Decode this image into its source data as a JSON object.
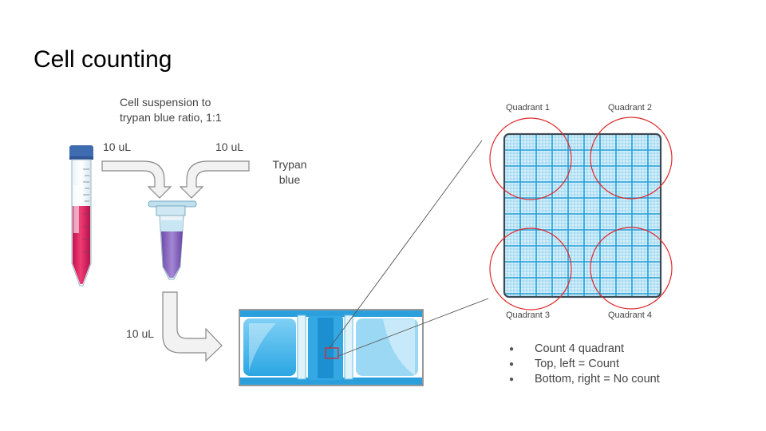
{
  "slide": {
    "title": "Cell counting",
    "ratio_line1": "Cell suspension to",
    "ratio_line2": "trypan blue ratio, 1:1",
    "vol_left": "10 uL",
    "vol_right": "10 uL",
    "vol_bottom": "10 uL",
    "trypan_line1": "Trypan",
    "trypan_line2": "blue",
    "quadrants": [
      "Quadrant 1",
      "Quadrant 2",
      "Quadrant 3",
      "Quadrant 4"
    ],
    "bullets": [
      "Count 4 quadrant",
      "Top, left = Count",
      "Bottom, right = No count"
    ]
  },
  "colors": {
    "arrow_fill": "#f2f2f2",
    "arrow_stroke": "#888888",
    "grid_line": "#1a9ad6",
    "grid_bg": "#d6f0fb",
    "circle": "#e0282a",
    "tube_liquid": "#d81b5a",
    "tube_cap": "#3f6cb0",
    "dye": "#8a64c0"
  }
}
